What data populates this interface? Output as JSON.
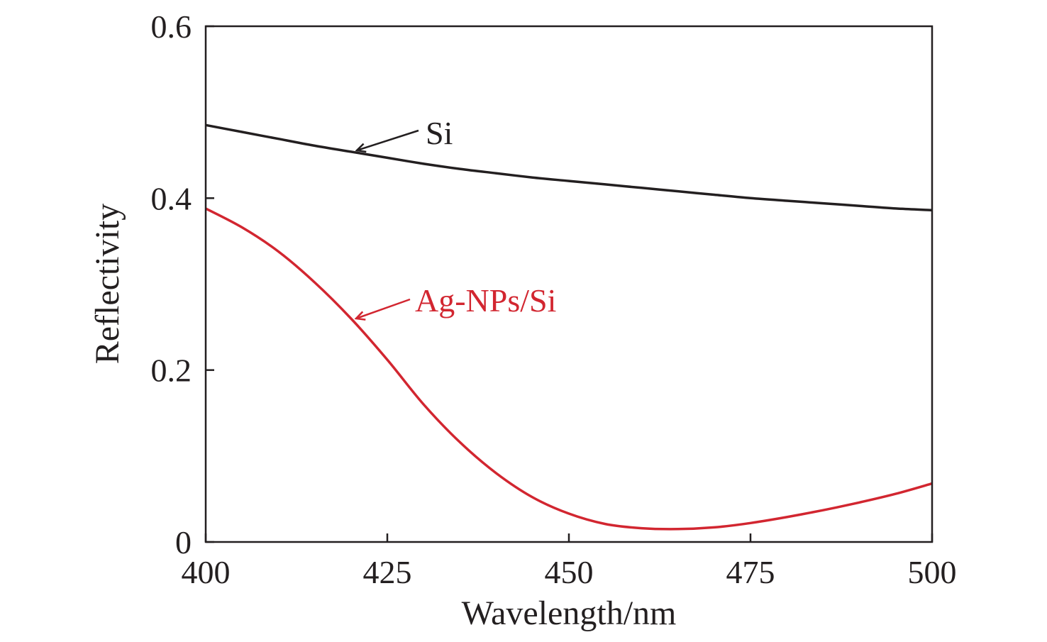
{
  "chart_data": {
    "type": "line",
    "title": "",
    "xlabel": "Wavelength/nm",
    "ylabel": "Reflectivity",
    "xlim": [
      400,
      500
    ],
    "ylim": [
      0,
      0.6
    ],
    "xticks": [
      400,
      425,
      450,
      475,
      500
    ],
    "yticks": [
      0,
      0.2,
      0.4,
      0.6
    ],
    "xtick_labels": [
      "400",
      "425",
      "450",
      "475",
      "500"
    ],
    "ytick_labels": [
      "0",
      "0.2",
      "0.4",
      "0.6"
    ],
    "grid": false,
    "series": [
      {
        "name": "Si",
        "color": "#231f20",
        "x": [
          400,
          405,
          410,
          415,
          420,
          425,
          430,
          435,
          440,
          445,
          450,
          455,
          460,
          465,
          470,
          475,
          480,
          485,
          490,
          495,
          500
        ],
        "y": [
          0.485,
          0.477,
          0.469,
          0.461,
          0.454,
          0.447,
          0.44,
          0.434,
          0.429,
          0.424,
          0.42,
          0.416,
          0.412,
          0.408,
          0.404,
          0.4,
          0.397,
          0.394,
          0.391,
          0.388,
          0.386
        ],
        "annotation_at": [
          420,
          0.455
        ]
      },
      {
        "name": "Ag-NPs/Si",
        "color": "#d22630",
        "x": [
          400,
          405,
          410,
          415,
          420,
          425,
          430,
          435,
          440,
          445,
          450,
          455,
          460,
          465,
          470,
          475,
          480,
          485,
          490,
          495,
          500
        ],
        "y": [
          0.388,
          0.366,
          0.338,
          0.302,
          0.26,
          0.212,
          0.16,
          0.116,
          0.08,
          0.052,
          0.033,
          0.021,
          0.016,
          0.015,
          0.017,
          0.022,
          0.029,
          0.037,
          0.046,
          0.056,
          0.068
        ],
        "annotation_at": [
          421,
          0.26
        ]
      }
    ]
  }
}
